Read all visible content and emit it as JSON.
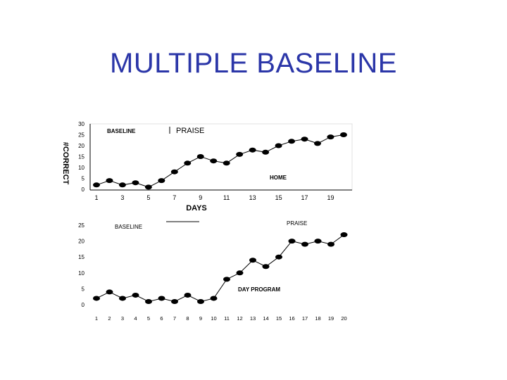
{
  "slide": {
    "title": "MULTIPLE BASELINE"
  },
  "chart_data": [
    {
      "type": "line",
      "ylabel": "#CORRECT",
      "xlabel": "DAYS",
      "ylim": [
        0,
        30
      ],
      "xlim": [
        1,
        20
      ],
      "yticks": [
        0,
        5,
        10,
        15,
        20,
        25,
        30
      ],
      "xticks": [
        1,
        3,
        5,
        7,
        9,
        11,
        13,
        15,
        17,
        19
      ],
      "annotations": {
        "baseline": "BASELINE",
        "praise": "PRAISE",
        "setting": "HOME"
      },
      "x": [
        1,
        2,
        3,
        4,
        5,
        6,
        7,
        8,
        9,
        10,
        11,
        12,
        13,
        14,
        15,
        16,
        17,
        18,
        19,
        20
      ],
      "values": [
        2,
        4,
        2,
        3,
        1,
        4,
        8,
        12,
        15,
        13,
        12,
        16,
        18,
        17,
        20,
        22,
        23,
        21,
        24,
        25
      ],
      "phase_change_after_x": 6
    },
    {
      "type": "line",
      "ylim": [
        0,
        25
      ],
      "xlim": [
        1,
        20
      ],
      "yticks": [
        0,
        5,
        10,
        15,
        20,
        25
      ],
      "xticks": [
        1,
        2,
        3,
        4,
        5,
        6,
        7,
        8,
        9,
        10,
        11,
        12,
        13,
        14,
        15,
        16,
        17,
        18,
        19,
        20
      ],
      "annotations": {
        "baseline": "BASELINE",
        "praise": "PRAISE",
        "setting": "DAY PROGRAM"
      },
      "x": [
        1,
        2,
        3,
        4,
        5,
        6,
        7,
        8,
        9,
        10,
        11,
        12,
        13,
        14,
        15,
        16,
        17,
        18,
        19,
        20
      ],
      "values": [
        2,
        4,
        2,
        3,
        1,
        2,
        1,
        3,
        1,
        2,
        8,
        10,
        14,
        12,
        15,
        20,
        19,
        20,
        19,
        22
      ],
      "phase_change_after_x": 10
    }
  ]
}
